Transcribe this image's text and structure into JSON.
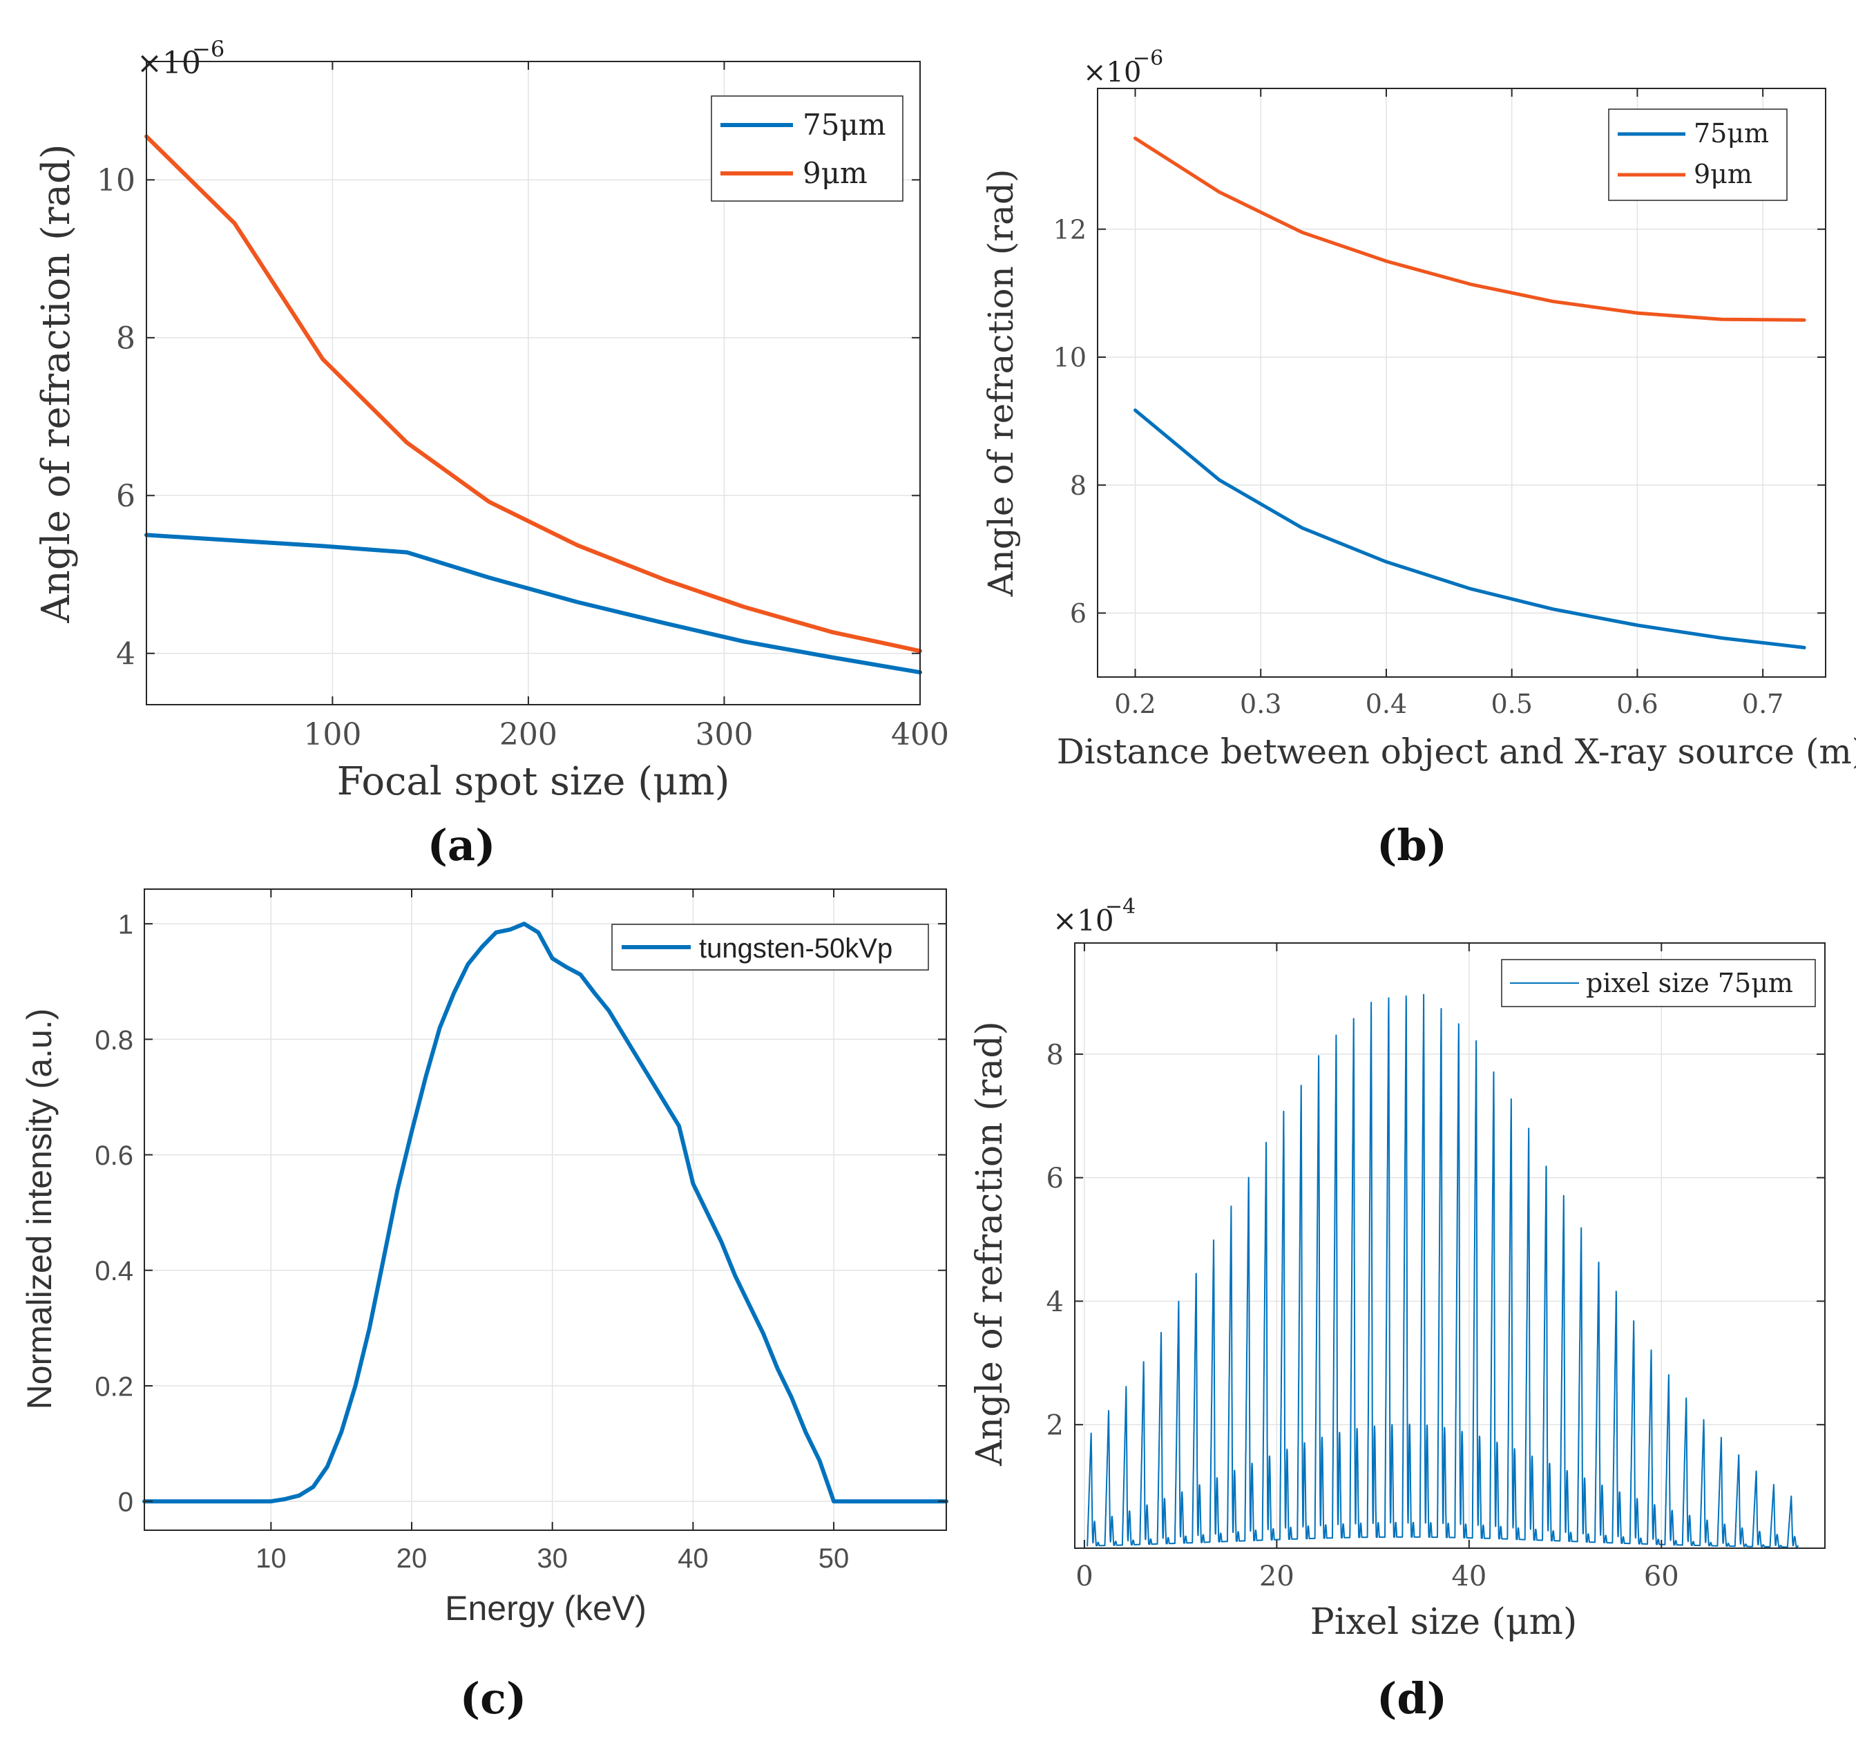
{
  "colors": {
    "blue": "#0072BD",
    "orange": "#F0561E",
    "grid": "#e3e3e3",
    "axis": "#262626",
    "tick": "#4d4d4d"
  },
  "panel_labels": {
    "a": "(a)",
    "b": "(b)",
    "c": "(c)",
    "d": "(d)"
  },
  "chart_data": [
    {
      "id": "a",
      "type": "line",
      "title": "",
      "xlabel": "Focal spot size (μm)",
      "ylabel": "Angle of refraction (rad)",
      "exponent": "×10",
      "exponent_power": "−6",
      "xlim": [
        5,
        400
      ],
      "ylim": [
        3.35,
        11.5
      ],
      "xticks": [
        100,
        200,
        300,
        400
      ],
      "xtick_labels": [
        "100",
        "200",
        "300",
        "400"
      ],
      "yticks": [
        4,
        6,
        8,
        10
      ],
      "ytick_labels": [
        "4",
        "6",
        "8",
        "10"
      ],
      "legend_position": "top-right",
      "series": [
        {
          "name": "75μm",
          "color": "#0072BD",
          "x": [
            5,
            50,
            95,
            138,
            180,
            225,
            270,
            310,
            355,
            400
          ],
          "y": [
            5.5,
            5.43,
            5.36,
            5.28,
            4.96,
            4.65,
            4.38,
            4.15,
            3.95,
            3.76
          ]
        },
        {
          "name": "9μm",
          "color": "#F0561E",
          "x": [
            5,
            50,
            95,
            138,
            180,
            225,
            270,
            310,
            355,
            400
          ],
          "y": [
            10.55,
            9.45,
            7.73,
            6.67,
            5.92,
            5.37,
            4.93,
            4.59,
            4.27,
            4.03
          ]
        }
      ]
    },
    {
      "id": "b",
      "type": "line",
      "title": "",
      "xlabel": "Distance between object and X-ray source (m)",
      "ylabel": "Angle of refraction (rad)",
      "exponent": "×10",
      "exponent_power": "−6",
      "xlim": [
        0.17,
        0.75
      ],
      "ylim": [
        5.0,
        14.2
      ],
      "xticks": [
        0.2,
        0.3,
        0.4,
        0.5,
        0.6,
        0.7
      ],
      "xtick_labels": [
        "0.2",
        "0.3",
        "0.4",
        "0.5",
        "0.6",
        "0.7"
      ],
      "yticks": [
        6,
        8,
        10,
        12
      ],
      "ytick_labels": [
        "6",
        "8",
        "10",
        "12"
      ],
      "legend_position": "top-right",
      "series": [
        {
          "name": "75μm",
          "color": "#0072BD",
          "x": [
            0.2,
            0.267,
            0.333,
            0.4,
            0.467,
            0.533,
            0.6,
            0.667,
            0.733
          ],
          "y": [
            9.17,
            8.08,
            7.33,
            6.8,
            6.38,
            6.06,
            5.81,
            5.61,
            5.46
          ]
        },
        {
          "name": "9μm",
          "color": "#F0561E",
          "x": [
            0.2,
            0.267,
            0.333,
            0.4,
            0.467,
            0.533,
            0.6,
            0.667,
            0.733
          ],
          "y": [
            13.42,
            12.58,
            11.95,
            11.5,
            11.14,
            10.87,
            10.69,
            10.59,
            10.58
          ]
        }
      ]
    },
    {
      "id": "c",
      "type": "line",
      "title": "",
      "xlabel": "Energy (keV)",
      "ylabel": "Normalized intensity (a.u.)",
      "xlim": [
        1,
        58
      ],
      "ylim": [
        -0.05,
        1.06
      ],
      "xticks": [
        10,
        20,
        30,
        40,
        50
      ],
      "xtick_labels": [
        "10",
        "20",
        "30",
        "40",
        "50"
      ],
      "yticks": [
        0,
        0.2,
        0.4,
        0.6,
        0.8,
        1
      ],
      "ytick_labels": [
        "0",
        "0.2",
        "0.4",
        "0.6",
        "0.8",
        "1"
      ],
      "legend_position": "top-right",
      "series": [
        {
          "name": "tungsten-50kVp",
          "color": "#0072BD",
          "x": [
            1,
            5,
            10,
            11,
            12,
            13,
            14,
            15,
            16,
            17,
            18,
            19,
            20,
            21,
            22,
            23,
            24,
            25,
            26,
            27,
            28,
            29,
            30,
            31,
            32,
            33,
            34,
            35,
            36,
            37,
            38,
            39,
            40,
            41,
            42,
            43,
            44,
            45,
            46,
            47,
            48,
            49,
            50,
            52,
            55,
            58
          ],
          "y": [
            0,
            0,
            0,
            0.004,
            0.01,
            0.025,
            0.06,
            0.12,
            0.2,
            0.3,
            0.42,
            0.54,
            0.64,
            0.735,
            0.82,
            0.88,
            0.93,
            0.96,
            0.985,
            0.99,
            1.0,
            0.985,
            0.94,
            0.925,
            0.912,
            0.88,
            0.85,
            0.81,
            0.77,
            0.73,
            0.69,
            0.65,
            0.55,
            0.5,
            0.45,
            0.39,
            0.34,
            0.29,
            0.23,
            0.18,
            0.12,
            0.07,
            0,
            0,
            0,
            0
          ]
        }
      ]
    },
    {
      "id": "d",
      "type": "line",
      "title": "",
      "xlabel": "Pixel size (μm)",
      "ylabel": "Angle of refraction (rad)",
      "exponent": "×10",
      "exponent_power": "−4",
      "xlim": [
        -1,
        77
      ],
      "ylim": [
        0,
        9.8
      ],
      "xticks": [
        0,
        20,
        40,
        60
      ],
      "xtick_labels": [
        "0",
        "20",
        "40",
        "60"
      ],
      "yticks": [
        2,
        4,
        6,
        8
      ],
      "ytick_labels": [
        "2",
        "4",
        "6",
        "8"
      ],
      "legend_position": "top-right",
      "series": [
        {
          "name": "pixel size 75μm",
          "color": "#0072BD",
          "period": 1.82,
          "x_start": 0.3,
          "x_end": 74.2,
          "peak_x": [
            0.7,
            2.5,
            4.35,
            6.15,
            8.0,
            9.8,
            11.6,
            13.45,
            15.25,
            17.1,
            18.9,
            20.7,
            22.55,
            24.35,
            26.2,
            28.0,
            29.8,
            31.65,
            33.45,
            35.3,
            37.1,
            38.9,
            40.75,
            42.55,
            44.4,
            46.2,
            48.0,
            49.85,
            51.65,
            53.5,
            55.3,
            57.1,
            58.95,
            60.75,
            62.6,
            64.4,
            66.2,
            68.05,
            69.85,
            71.7,
            73.5
          ],
          "peak_y": [
            1.88,
            2.24,
            2.62,
            3.05,
            3.52,
            4.0,
            4.5,
            5.02,
            5.55,
            6.08,
            6.6,
            7.1,
            7.58,
            8.0,
            8.36,
            8.66,
            8.86,
            8.98,
            9.02,
            8.98,
            8.82,
            8.56,
            8.22,
            7.8,
            7.32,
            6.8,
            6.27,
            5.74,
            5.2,
            4.68,
            4.18,
            3.7,
            3.24,
            2.82,
            2.44,
            2.1,
            1.8,
            1.52,
            1.26,
            1.03,
            0.85
          ]
        }
      ]
    }
  ]
}
